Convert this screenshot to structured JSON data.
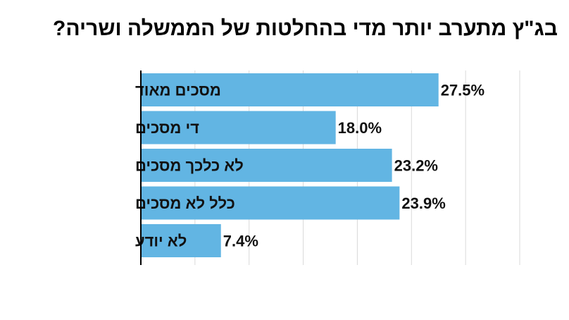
{
  "chart_data": {
    "type": "bar",
    "orientation": "horizontal",
    "title": "בג\"ץ מתערב יותר מדי בהחלטות של הממשלה ושריה?",
    "categories": [
      "מסכים מאוד",
      "די מסכים",
      "לא כלכך מסכים",
      "כלל לא מסכים",
      "לא יודע"
    ],
    "values": [
      27.5,
      18.0,
      23.2,
      23.9,
      7.4
    ],
    "value_labels": [
      "27.5%",
      "18.0%",
      "23.2%",
      "23.9%",
      "7.4%"
    ],
    "xlim": [
      0,
      35
    ],
    "grid": true,
    "bar_color": "#62b5e3",
    "grid_color": "#d9d9d9",
    "axis_color": "#000000"
  }
}
